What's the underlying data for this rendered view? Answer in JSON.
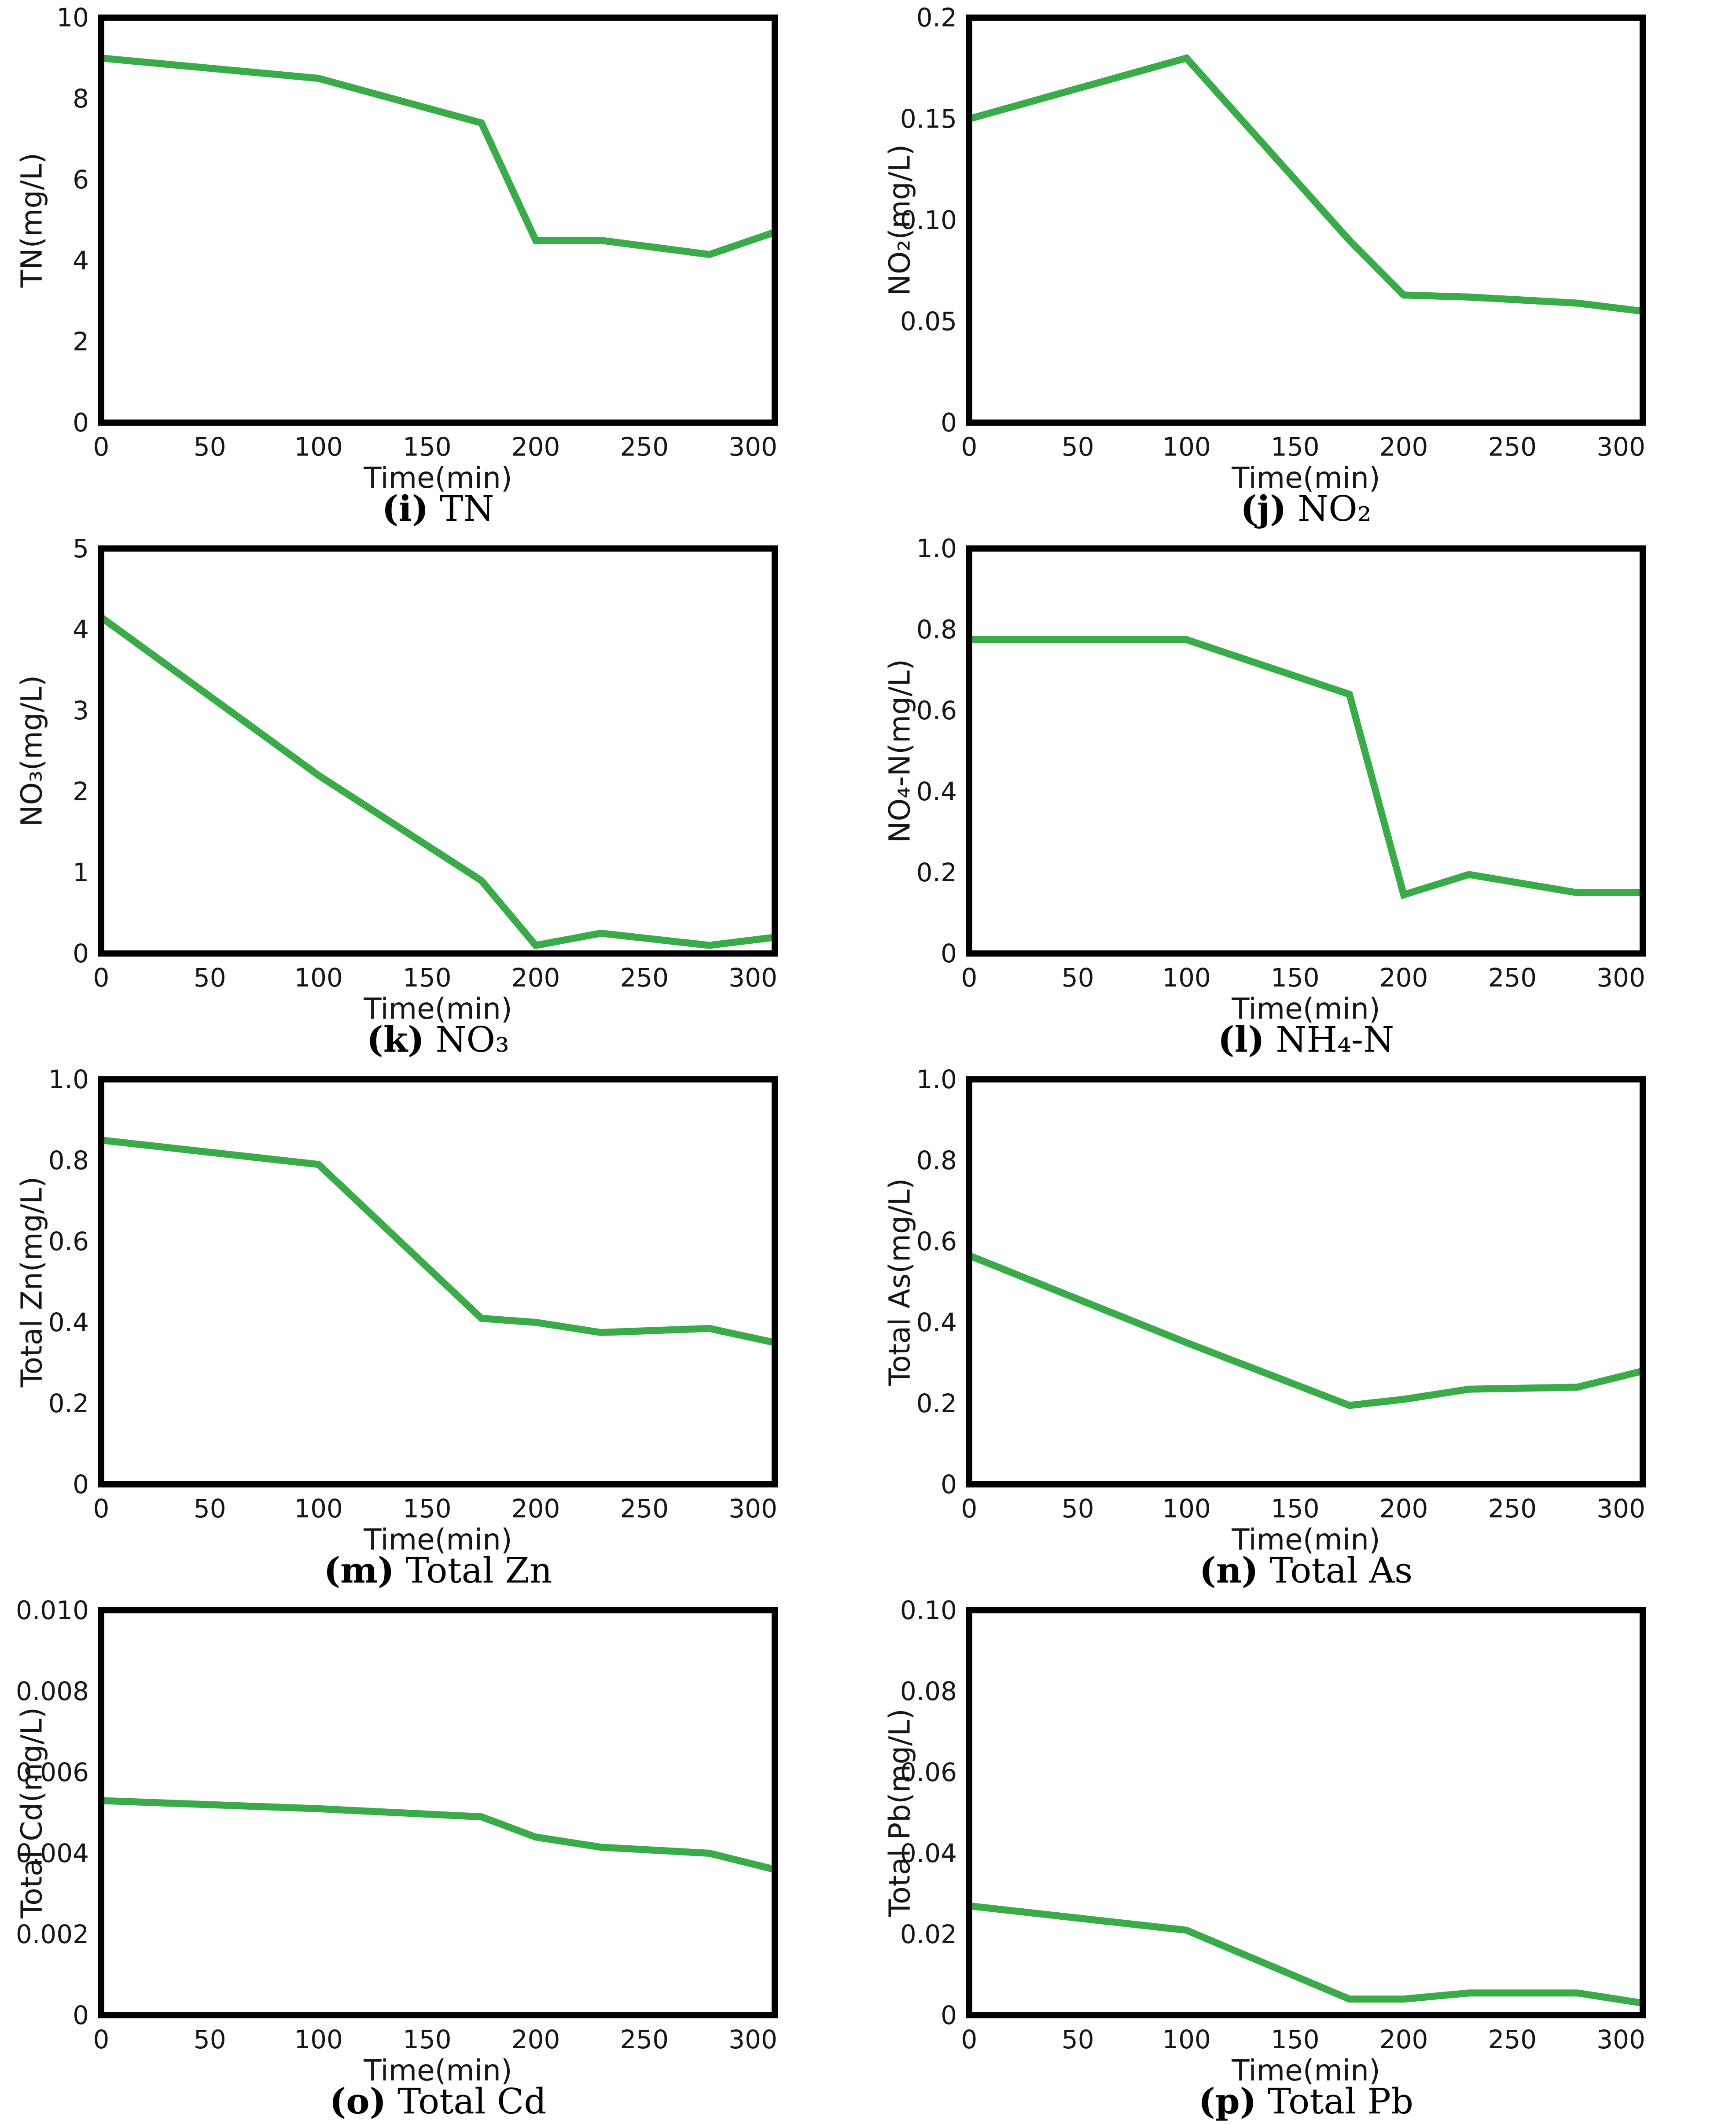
{
  "style": {
    "line_color": "#3aab49",
    "axis_color": "#000000",
    "text_color": "#161616",
    "background": "#ffffff"
  },
  "chart_data": [
    {
      "id": "i",
      "type": "line",
      "caption_label": "(i)",
      "caption_title": "TN",
      "ylabel": "TN(mg/L)",
      "xlabel": "Time(min)",
      "xlim": [
        0,
        310
      ],
      "ylim": [
        0,
        10
      ],
      "xticks": [
        0,
        50,
        100,
        150,
        200,
        250,
        300
      ],
      "ytick_values": [
        0,
        2,
        4,
        6,
        8,
        10
      ],
      "ytick_labels": [
        "0",
        "2",
        "4",
        "6",
        "8",
        "10"
      ],
      "x": [
        0,
        100,
        175,
        200,
        230,
        280,
        310
      ],
      "values": [
        9.0,
        8.5,
        7.4,
        4.5,
        4.5,
        4.15,
        4.7
      ],
      "grid": false,
      "legend": null
    },
    {
      "id": "j",
      "type": "line",
      "caption_label": "(j)",
      "caption_title": "NO₂",
      "ylabel": "NO₂(mg/L)",
      "xlabel": "Time(min)",
      "xlim": [
        0,
        310
      ],
      "ylim": [
        0,
        0.2
      ],
      "xticks": [
        0,
        50,
        100,
        150,
        200,
        250,
        300
      ],
      "ytick_values": [
        0,
        0.05,
        0.1,
        0.15,
        0.2
      ],
      "ytick_labels": [
        "0",
        "0.05",
        "0.10",
        "0.15",
        "0.2"
      ],
      "x": [
        0,
        100,
        175,
        200,
        230,
        280,
        310
      ],
      "values": [
        0.15,
        0.18,
        0.09,
        0.063,
        0.062,
        0.059,
        0.055
      ],
      "grid": false,
      "legend": null
    },
    {
      "id": "k",
      "type": "line",
      "caption_label": "(k)",
      "caption_title": "NO₃",
      "ylabel": "NO₃(mg/L)",
      "xlabel": "Time(min)",
      "xlim": [
        0,
        310
      ],
      "ylim": [
        0,
        5
      ],
      "xticks": [
        0,
        50,
        100,
        150,
        200,
        250,
        300
      ],
      "ytick_values": [
        0,
        1,
        2,
        3,
        4,
        5
      ],
      "ytick_labels": [
        "0",
        "1",
        "2",
        "3",
        "4",
        "5"
      ],
      "x": [
        0,
        100,
        175,
        200,
        230,
        280,
        310
      ],
      "values": [
        4.15,
        2.2,
        0.9,
        0.1,
        0.25,
        0.1,
        0.2
      ],
      "grid": false,
      "legend": null
    },
    {
      "id": "l",
      "type": "line",
      "caption_label": "(l)",
      "caption_title": "NH₄-N",
      "ylabel": "NO₄-N(mg/L)",
      "xlabel": "Time(min)",
      "xlim": [
        0,
        310
      ],
      "ylim": [
        0,
        1.0
      ],
      "xticks": [
        0,
        50,
        100,
        150,
        200,
        250,
        300
      ],
      "ytick_values": [
        0,
        0.2,
        0.4,
        0.6,
        0.8,
        1.0
      ],
      "ytick_labels": [
        "0",
        "0.2",
        "0.4",
        "0.6",
        "0.8",
        "1.0"
      ],
      "x": [
        0,
        100,
        175,
        200,
        230,
        280,
        310
      ],
      "values": [
        0.775,
        0.775,
        0.64,
        0.145,
        0.195,
        0.15,
        0.15
      ],
      "grid": false,
      "legend": null
    },
    {
      "id": "m",
      "type": "line",
      "caption_label": "(m)",
      "caption_title": "Total Zn",
      "ylabel": "Total Zn(mg/L)",
      "xlabel": "Time(min)",
      "xlim": [
        0,
        310
      ],
      "ylim": [
        0,
        1.0
      ],
      "xticks": [
        0,
        50,
        100,
        150,
        200,
        250,
        300
      ],
      "ytick_values": [
        0,
        0.2,
        0.4,
        0.6,
        0.8,
        1.0
      ],
      "ytick_labels": [
        "0",
        "0.2",
        "0.4",
        "0.6",
        "0.8",
        "1.0"
      ],
      "x": [
        0,
        100,
        175,
        200,
        230,
        280,
        310
      ],
      "values": [
        0.85,
        0.79,
        0.41,
        0.4,
        0.375,
        0.385,
        0.35
      ],
      "grid": false,
      "legend": null
    },
    {
      "id": "n",
      "type": "line",
      "caption_label": "(n)",
      "caption_title": "Total As",
      "ylabel": "Total As(mg/L)",
      "xlabel": "Time(min)",
      "xlim": [
        0,
        310
      ],
      "ylim": [
        0,
        1.0
      ],
      "xticks": [
        0,
        50,
        100,
        150,
        200,
        250,
        300
      ],
      "ytick_values": [
        0,
        0.2,
        0.4,
        0.6,
        0.8,
        1.0
      ],
      "ytick_labels": [
        "0",
        "0.2",
        "0.4",
        "0.6",
        "0.8",
        "1.0"
      ],
      "x": [
        0,
        100,
        175,
        200,
        230,
        280,
        310
      ],
      "values": [
        0.565,
        0.35,
        0.195,
        0.21,
        0.235,
        0.24,
        0.28
      ],
      "grid": false,
      "legend": null
    },
    {
      "id": "o",
      "type": "line",
      "caption_label": "(o)",
      "caption_title": "Total Cd",
      "ylabel": "Total Cd(mg/L)",
      "xlabel": "Time(min)",
      "xlim": [
        0,
        310
      ],
      "ylim": [
        0,
        0.01
      ],
      "xticks": [
        0,
        50,
        100,
        150,
        200,
        250,
        300
      ],
      "ytick_values": [
        0,
        0.002,
        0.004,
        0.006,
        0.008,
        0.01
      ],
      "ytick_labels": [
        "0",
        "0.002",
        "0.004",
        "0.006",
        "0.008",
        "0.010"
      ],
      "x": [
        0,
        100,
        175,
        200,
        230,
        280,
        310
      ],
      "values": [
        0.0053,
        0.0051,
        0.0049,
        0.0044,
        0.00415,
        0.004,
        0.0036
      ],
      "grid": false,
      "legend": null
    },
    {
      "id": "p",
      "type": "line",
      "caption_label": "(p)",
      "caption_title": "Total Pb",
      "ylabel": "Total Pb(mg/L)",
      "xlabel": "Time(min)",
      "xlim": [
        0,
        310
      ],
      "ylim": [
        0,
        0.1
      ],
      "xticks": [
        0,
        50,
        100,
        150,
        200,
        250,
        300
      ],
      "ytick_values": [
        0,
        0.02,
        0.04,
        0.06,
        0.08,
        0.1
      ],
      "ytick_labels": [
        "0",
        "0.02",
        "0.04",
        "0.06",
        "0.08",
        "0.10"
      ],
      "x": [
        0,
        100,
        175,
        200,
        230,
        280,
        310
      ],
      "values": [
        0.027,
        0.021,
        0.004,
        0.004,
        0.0055,
        0.0055,
        0.003
      ],
      "grid": false,
      "legend": null
    }
  ]
}
